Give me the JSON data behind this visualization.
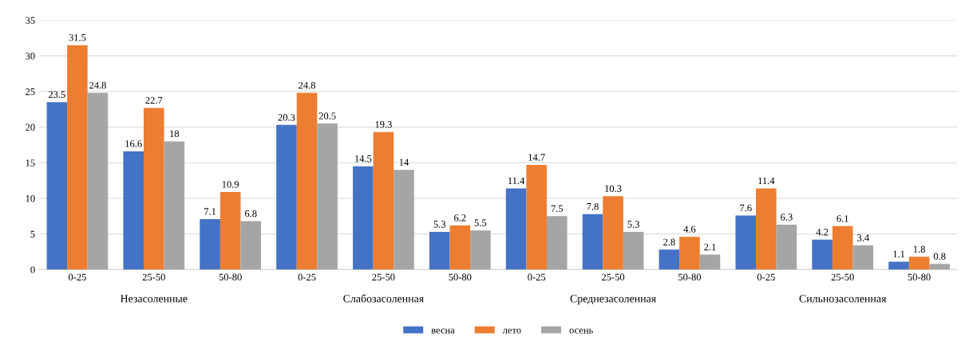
{
  "chart_data": {
    "type": "bar",
    "categories": [
      "0-25",
      "25-50",
      "50-80",
      "0-25",
      "25-50",
      "50-80",
      "0-25",
      "25-50",
      "50-80",
      "0-25",
      "25-50",
      "50-80"
    ],
    "series": [
      {
        "name": "весна",
        "color": "#4472c4",
        "values": [
          23.5,
          16.6,
          7.1,
          20.3,
          14.5,
          5.3,
          11.4,
          7.8,
          2.8,
          7.6,
          4.2,
          1.1
        ]
      },
      {
        "name": "лето",
        "color": "#ed7d31",
        "values": [
          31.5,
          22.7,
          10.9,
          24.8,
          19.3,
          6.2,
          14.7,
          10.3,
          4.6,
          11.4,
          6.1,
          1.8
        ]
      },
      {
        "name": "осень",
        "color": "#a5a5a5",
        "values": [
          24.8,
          18,
          6.8,
          20.5,
          14,
          5.5,
          7.5,
          5.3,
          2.1,
          6.3,
          3.4,
          0.8
        ]
      }
    ],
    "annotations": [
      "Незасоленные",
      "Слабозасоленная",
      "Среднезасоленная",
      "Сильнозасоленная"
    ],
    "ylim": [
      0,
      35
    ],
    "yticks": [
      0,
      5,
      10,
      15,
      20,
      25,
      30,
      35
    ],
    "grid": "y",
    "legend": "bottom",
    "data_labels": true
  }
}
